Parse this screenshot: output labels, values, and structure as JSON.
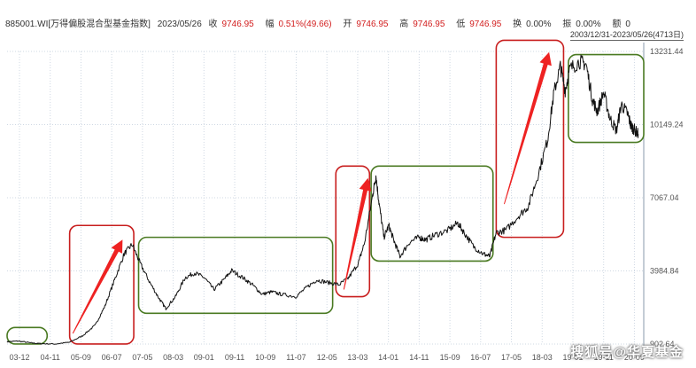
{
  "header": {
    "code": "885001.WI[万得偏股混合型基金指数]",
    "date": "2023/05/26",
    "close_label": "收",
    "close_value": "9746.95",
    "change_label": "幅",
    "change_value": "0.51%(49.66)",
    "open_label": "开",
    "open_value": "9746.95",
    "high_label": "高",
    "high_value": "9746.95",
    "low_label": "低",
    "low_value": "9746.95",
    "turnover_label": "换",
    "turnover_value": "0.00%",
    "amplitude_label": "振",
    "amplitude_value": "0.00%",
    "amount_label": "额",
    "amount_value": "0"
  },
  "date_range": "2003/12/31-2023/05/26(4713日)",
  "watermark": "搜狐号@华夏基金",
  "chart_data": {
    "type": "line",
    "x_tick_labels": [
      "03-12",
      "04-11",
      "05-09",
      "06-07",
      "07-05",
      "08-03",
      "09-01",
      "09-11",
      "10-09",
      "11-07",
      "12-05",
      "13-03",
      "14-01",
      "14-11",
      "15-09",
      "16-07",
      "17-05",
      "18-03",
      "19-01",
      "19-11",
      "20-09"
    ],
    "y_tick_labels": [
      "13231.44",
      "10149.24",
      "7067.04",
      "3984.84",
      "902.64"
    ],
    "ylim": [
      902.64,
      13231.44
    ],
    "series": [
      {
        "values": [
          [
            2003.95,
            1000
          ],
          [
            2004.3,
            1030
          ],
          [
            2004.7,
            950
          ],
          [
            2005.0,
            920
          ],
          [
            2005.45,
            905
          ],
          [
            2005.9,
            980
          ],
          [
            2006.3,
            1250
          ],
          [
            2006.7,
            1700
          ],
          [
            2007.0,
            2500
          ],
          [
            2007.3,
            3600
          ],
          [
            2007.6,
            4700
          ],
          [
            2007.85,
            5100
          ],
          [
            2008.1,
            4300
          ],
          [
            2008.4,
            3500
          ],
          [
            2008.7,
            2800
          ],
          [
            2008.9,
            2400
          ],
          [
            2009.2,
            2900
          ],
          [
            2009.5,
            3700
          ],
          [
            2009.8,
            3900
          ],
          [
            2010.1,
            3700
          ],
          [
            2010.4,
            3200
          ],
          [
            2010.7,
            3600
          ],
          [
            2010.95,
            4000
          ],
          [
            2011.3,
            3700
          ],
          [
            2011.6,
            3400
          ],
          [
            2011.9,
            3000
          ],
          [
            2012.2,
            3100
          ],
          [
            2012.5,
            3000
          ],
          [
            2012.95,
            2900
          ],
          [
            2013.3,
            3300
          ],
          [
            2013.6,
            3600
          ],
          [
            2013.95,
            3500
          ],
          [
            2014.3,
            3400
          ],
          [
            2014.6,
            3700
          ],
          [
            2014.9,
            4300
          ],
          [
            2015.1,
            5200
          ],
          [
            2015.35,
            7200
          ],
          [
            2015.45,
            8000
          ],
          [
            2015.55,
            6800
          ],
          [
            2015.7,
            5400
          ],
          [
            2015.85,
            5900
          ],
          [
            2016.0,
            5300
          ],
          [
            2016.2,
            4600
          ],
          [
            2016.5,
            5200
          ],
          [
            2016.8,
            5400
          ],
          [
            2017.0,
            5300
          ],
          [
            2017.3,
            5500
          ],
          [
            2017.7,
            5700
          ],
          [
            2018.0,
            6000
          ],
          [
            2018.2,
            5600
          ],
          [
            2018.5,
            5000
          ],
          [
            2018.8,
            4700
          ],
          [
            2019.0,
            4600
          ],
          [
            2019.2,
            5600
          ],
          [
            2019.5,
            5700
          ],
          [
            2019.9,
            6300
          ],
          [
            2020.2,
            6700
          ],
          [
            2020.5,
            8000
          ],
          [
            2020.8,
            9500
          ],
          [
            2021.0,
            11500
          ],
          [
            2021.2,
            12600
          ],
          [
            2021.35,
            11600
          ],
          [
            2021.5,
            12500
          ],
          [
            2021.8,
            12800
          ],
          [
            2022.0,
            12700
          ],
          [
            2022.2,
            11200
          ],
          [
            2022.35,
            10700
          ],
          [
            2022.55,
            11500
          ],
          [
            2022.75,
            10400
          ],
          [
            2022.95,
            9900
          ],
          [
            2023.1,
            11000
          ],
          [
            2023.3,
            10600
          ],
          [
            2023.4,
            10100
          ],
          [
            2023.5,
            9950
          ],
          [
            2023.63,
            9750
          ]
        ]
      }
    ],
    "annotations": [
      {
        "type": "box",
        "color": "green",
        "x_range": [
          2003.95,
          2005.2
        ],
        "y_range": [
          905,
          1600
        ]
      },
      {
        "type": "box",
        "color": "red",
        "x_range": [
          2005.9,
          2007.9
        ],
        "y_range": [
          905,
          5900
        ]
      },
      {
        "type": "arrow",
        "color": "red",
        "from": [
          2006.0,
          1350
        ],
        "to": [
          2007.55,
          5300
        ]
      },
      {
        "type": "box",
        "color": "green",
        "x_range": [
          2008.05,
          2014.1
        ],
        "y_range": [
          2200,
          5400
        ]
      },
      {
        "type": "box",
        "color": "red",
        "x_range": [
          2014.2,
          2015.25
        ],
        "y_range": [
          2900,
          8400
        ]
      },
      {
        "type": "arrow",
        "color": "red",
        "from": [
          2014.45,
          3200
        ],
        "to": [
          2015.2,
          7900
        ]
      },
      {
        "type": "box",
        "color": "green",
        "x_range": [
          2015.3,
          2019.1
        ],
        "y_range": [
          4400,
          8400
        ]
      },
      {
        "type": "box",
        "color": "red",
        "x_range": [
          2019.2,
          2021.3
        ],
        "y_range": [
          5400,
          13700
        ]
      },
      {
        "type": "arrow",
        "color": "red",
        "from": [
          2019.45,
          6800
        ],
        "to": [
          2020.85,
          13200
        ]
      },
      {
        "type": "box",
        "color": "green",
        "x_range": [
          2021.45,
          2023.8
        ],
        "y_range": [
          9400,
          13100
        ]
      }
    ],
    "colors": {
      "line": "#111111",
      "box_red": "#c81e1e",
      "box_green": "#4a7a22",
      "arrow": "#ee2222",
      "grid": "#cfd8e3"
    },
    "grid": true
  }
}
